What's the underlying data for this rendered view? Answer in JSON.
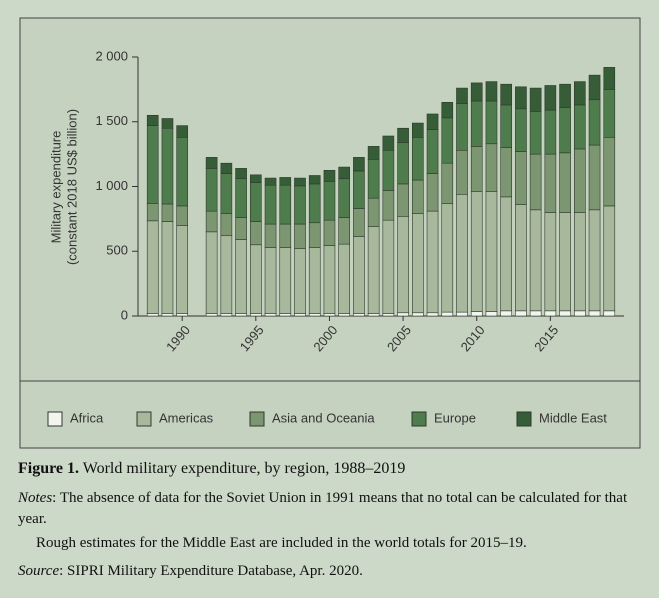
{
  "chart_data": {
    "type": "bar",
    "stacked": true,
    "ylabel": [
      "Military expenditure",
      "(constant 2018 US$ billion)"
    ],
    "x": [
      1988,
      1989,
      1990,
      1991,
      1992,
      1993,
      1994,
      1995,
      1996,
      1997,
      1998,
      1999,
      2000,
      2001,
      2002,
      2003,
      2004,
      2005,
      2006,
      2007,
      2008,
      2009,
      2010,
      2011,
      2012,
      2013,
      2014,
      2015,
      2016,
      2017,
      2018,
      2019
    ],
    "xlim": [
      1987,
      2020
    ],
    "xticks": [
      1990,
      1995,
      2000,
      2005,
      2010,
      2015
    ],
    "ylim": [
      0,
      2000
    ],
    "yticks": [
      0,
      500,
      {
        "value": 1000,
        "label": "1 000"
      },
      {
        "value": 1500,
        "label": "1 500"
      },
      {
        "value": 2000,
        "label": "2 000"
      }
    ],
    "series": [
      {
        "name": "Africa",
        "color": "#f3f4ee",
        "values": [
          20,
          20,
          20,
          null,
          20,
          20,
          20,
          20,
          20,
          20,
          20,
          20,
          20,
          20,
          20,
          20,
          20,
          25,
          25,
          25,
          30,
          30,
          35,
          35,
          40,
          40,
          40,
          40,
          40,
          40,
          40,
          40
        ]
      },
      {
        "name": "Americas",
        "color": "#a8b89d",
        "values": [
          715,
          710,
          680,
          null,
          630,
          600,
          570,
          530,
          510,
          510,
          500,
          510,
          525,
          535,
          595,
          670,
          720,
          745,
          765,
          785,
          840,
          910,
          925,
          925,
          880,
          820,
          780,
          760,
          760,
          760,
          780,
          810
        ]
      },
      {
        "name": "Asia and Oceania",
        "color": "#7d9672",
        "values": [
          135,
          135,
          150,
          null,
          160,
          170,
          170,
          180,
          180,
          180,
          190,
          190,
          195,
          205,
          215,
          220,
          230,
          250,
          260,
          290,
          310,
          340,
          350,
          370,
          380,
          410,
          430,
          450,
          460,
          490,
          500,
          530
        ]
      },
      {
        "name": "Europe",
        "color": "#4f7c4d",
        "values": [
          600,
          585,
          530,
          null,
          330,
          310,
          300,
          300,
          300,
          300,
          295,
          300,
          300,
          300,
          290,
          300,
          310,
          320,
          330,
          340,
          350,
          360,
          350,
          330,
          330,
          330,
          330,
          340,
          350,
          340,
          350,
          370
        ]
      },
      {
        "name": "Middle East",
        "color": "#365d38",
        "values": [
          80,
          75,
          90,
          null,
          85,
          80,
          80,
          60,
          55,
          60,
          60,
          65,
          85,
          90,
          105,
          100,
          110,
          110,
          110,
          120,
          120,
          120,
          140,
          150,
          160,
          170,
          180,
          190,
          180,
          180,
          190,
          170
        ]
      }
    ]
  },
  "caption": {
    "label": "Figure 1.",
    "text": "World military expenditure, by region, 1988–2019"
  },
  "notes": {
    "label": "Notes",
    "paragraphs": [
      ": The absence of data for the Soviet Union in 1991 means that no total can be calculated for that year.",
      "Rough estimates for the Middle East are included in the world totals for 2015–19."
    ]
  },
  "source": {
    "label": "Source",
    "text": ": SIPRI Military Expenditure Database, Apr. 2020."
  }
}
